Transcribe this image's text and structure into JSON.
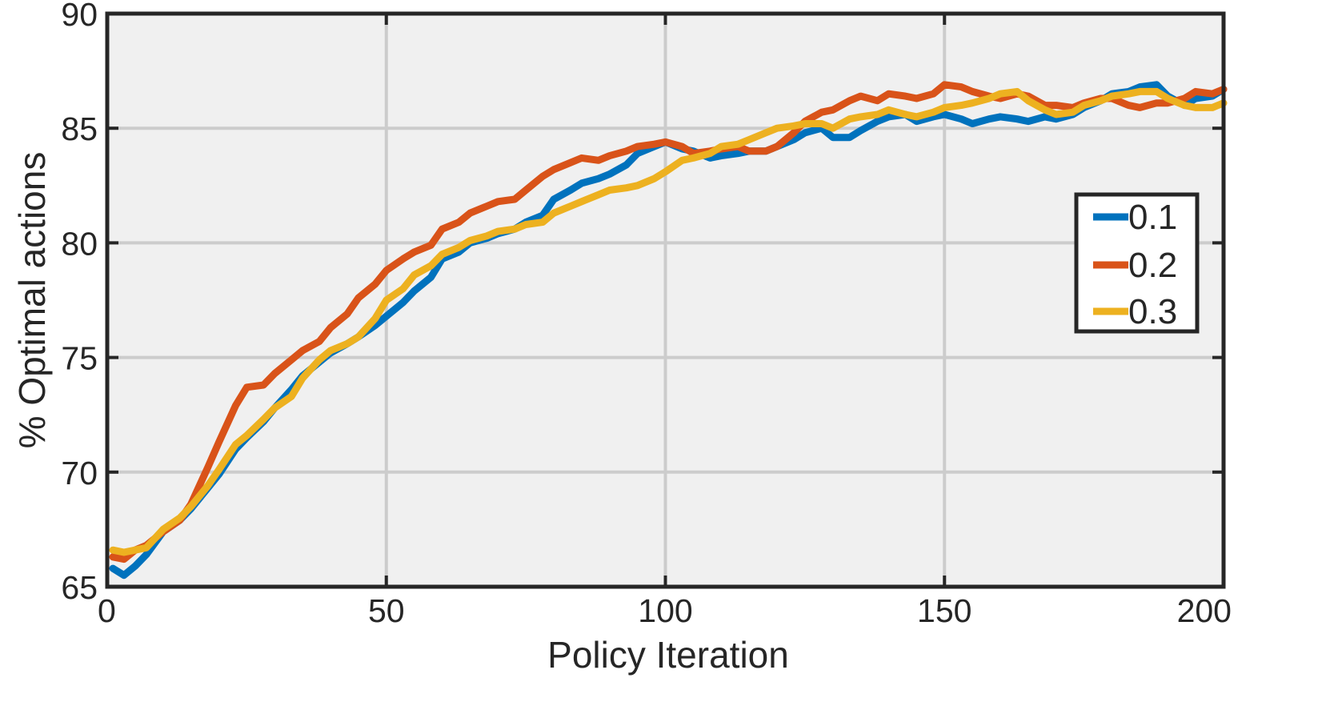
{
  "chart_data": {
    "type": "line",
    "xlabel": "Policy Iteration",
    "ylabel": "% Optimal actions",
    "xlim": [
      0,
      200
    ],
    "ylim": [
      65,
      90
    ],
    "xticks": [
      0,
      50,
      100,
      150,
      200
    ],
    "yticks": [
      65,
      70,
      75,
      80,
      85,
      90
    ],
    "xtick_labels": [
      "0",
      "50",
      "100",
      "150",
      "200"
    ],
    "ytick_labels": [
      "65",
      "70",
      "75",
      "80",
      "85",
      "90"
    ],
    "grid": true,
    "legend_position": "right",
    "colors": {
      "plot_bg": "#f0f0f0",
      "grid": "#cccccc",
      "frame": "#262626"
    },
    "series": [
      {
        "name": "0.1",
        "color": "#0072BD",
        "x": [
          1,
          3,
          5,
          7,
          10,
          13,
          15,
          18,
          20,
          23,
          25,
          28,
          30,
          33,
          35,
          38,
          40,
          43,
          45,
          48,
          50,
          53,
          55,
          58,
          60,
          63,
          65,
          68,
          70,
          73,
          75,
          78,
          80,
          83,
          85,
          88,
          90,
          93,
          95,
          98,
          100,
          103,
          105,
          108,
          110,
          113,
          115,
          118,
          120,
          123,
          125,
          128,
          130,
          133,
          135,
          138,
          140,
          143,
          145,
          148,
          150,
          153,
          155,
          158,
          160,
          163,
          165,
          168,
          170,
          173,
          175,
          178,
          180,
          183,
          185,
          188,
          190,
          193,
          195,
          198,
          200
        ],
        "y": [
          65.8,
          65.5,
          65.9,
          66.4,
          67.4,
          67.9,
          68.4,
          69.3,
          69.9,
          71.0,
          71.5,
          72.2,
          72.8,
          73.6,
          74.2,
          74.8,
          75.2,
          75.6,
          75.9,
          76.4,
          76.8,
          77.4,
          77.9,
          78.5,
          79.3,
          79.6,
          80.0,
          80.2,
          80.4,
          80.6,
          80.9,
          81.2,
          81.9,
          82.3,
          82.6,
          82.8,
          83.0,
          83.4,
          83.9,
          84.2,
          84.4,
          84.1,
          84.0,
          83.7,
          83.8,
          83.9,
          84.0,
          84.0,
          84.2,
          84.5,
          84.8,
          85.0,
          84.6,
          84.6,
          84.9,
          85.3,
          85.5,
          85.6,
          85.3,
          85.5,
          85.6,
          85.4,
          85.2,
          85.4,
          85.5,
          85.4,
          85.3,
          85.5,
          85.4,
          85.6,
          85.9,
          86.2,
          86.5,
          86.6,
          86.8,
          86.9,
          86.4,
          86.0,
          86.3,
          86.4,
          86.7
        ]
      },
      {
        "name": "0.2",
        "color": "#D95319",
        "x": [
          1,
          3,
          5,
          7,
          10,
          13,
          15,
          18,
          20,
          23,
          25,
          28,
          30,
          33,
          35,
          38,
          40,
          43,
          45,
          48,
          50,
          53,
          55,
          58,
          60,
          63,
          65,
          68,
          70,
          73,
          75,
          78,
          80,
          83,
          85,
          88,
          90,
          93,
          95,
          98,
          100,
          103,
          105,
          108,
          110,
          113,
          115,
          118,
          120,
          123,
          125,
          128,
          130,
          133,
          135,
          138,
          140,
          143,
          145,
          148,
          150,
          153,
          155,
          158,
          160,
          163,
          165,
          168,
          170,
          173,
          175,
          178,
          180,
          183,
          185,
          188,
          190,
          193,
          195,
          198,
          200
        ],
        "y": [
          66.3,
          66.2,
          66.6,
          66.8,
          67.4,
          67.9,
          68.6,
          70.2,
          71.3,
          72.9,
          73.7,
          73.8,
          74.3,
          74.9,
          75.3,
          75.7,
          76.3,
          76.9,
          77.6,
          78.2,
          78.8,
          79.3,
          79.6,
          79.9,
          80.6,
          80.9,
          81.3,
          81.6,
          81.8,
          81.9,
          82.3,
          82.9,
          83.2,
          83.5,
          83.7,
          83.6,
          83.8,
          84.0,
          84.2,
          84.3,
          84.4,
          84.2,
          83.9,
          84.0,
          84.1,
          84.2,
          84.0,
          84.0,
          84.2,
          84.8,
          85.3,
          85.7,
          85.8,
          86.2,
          86.4,
          86.2,
          86.5,
          86.4,
          86.3,
          86.5,
          86.9,
          86.8,
          86.6,
          86.4,
          86.3,
          86.5,
          86.4,
          86.0,
          86.0,
          85.9,
          86.1,
          86.3,
          86.3,
          86.0,
          85.9,
          86.1,
          86.1,
          86.3,
          86.6,
          86.5,
          86.7
        ]
      },
      {
        "name": "0.3",
        "color": "#EDB120",
        "x": [
          1,
          3,
          5,
          7,
          10,
          13,
          15,
          18,
          20,
          23,
          25,
          28,
          30,
          33,
          35,
          38,
          40,
          43,
          45,
          48,
          50,
          53,
          55,
          58,
          60,
          63,
          65,
          68,
          70,
          73,
          75,
          78,
          80,
          83,
          85,
          88,
          90,
          93,
          95,
          98,
          100,
          103,
          105,
          108,
          110,
          113,
          115,
          118,
          120,
          123,
          125,
          128,
          130,
          133,
          135,
          138,
          140,
          143,
          145,
          148,
          150,
          153,
          155,
          158,
          160,
          163,
          165,
          168,
          170,
          173,
          175,
          178,
          180,
          183,
          185,
          188,
          190,
          193,
          195,
          198,
          200
        ],
        "y": [
          66.6,
          66.5,
          66.6,
          66.7,
          67.5,
          68.0,
          68.5,
          69.4,
          70.1,
          71.2,
          71.6,
          72.3,
          72.8,
          73.3,
          74.1,
          74.9,
          75.3,
          75.6,
          75.9,
          76.7,
          77.5,
          78.0,
          78.6,
          79.0,
          79.5,
          79.8,
          80.1,
          80.3,
          80.5,
          80.6,
          80.8,
          80.9,
          81.3,
          81.6,
          81.8,
          82.1,
          82.3,
          82.4,
          82.5,
          82.8,
          83.1,
          83.6,
          83.7,
          83.9,
          84.2,
          84.3,
          84.5,
          84.8,
          85.0,
          85.1,
          85.2,
          85.2,
          85.0,
          85.4,
          85.5,
          85.6,
          85.8,
          85.6,
          85.5,
          85.7,
          85.9,
          86.0,
          86.1,
          86.3,
          86.5,
          86.6,
          86.2,
          85.8,
          85.6,
          85.7,
          86.0,
          86.2,
          86.4,
          86.5,
          86.6,
          86.6,
          86.3,
          86.0,
          85.9,
          85.9,
          86.1
        ]
      }
    ]
  }
}
